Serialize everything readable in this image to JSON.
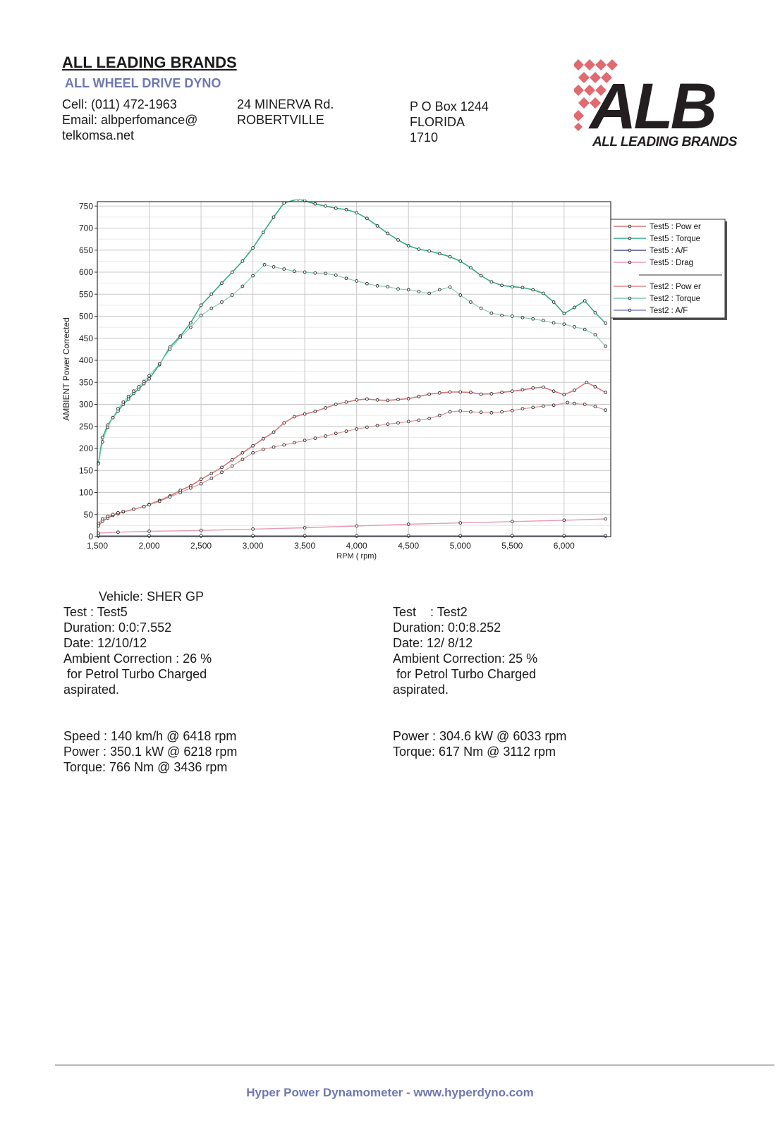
{
  "header": {
    "company": "ALL LEADING BRANDS",
    "subtitle": "ALL WHEEL DRIVE DYNO",
    "col1": [
      "Cell: (011) 472-1963",
      "Email: albperfomance@",
      "telkomsa.net"
    ],
    "col2": [
      "24 MINERVA Rd.",
      "ROBERTVILLE"
    ],
    "col3": [
      "P O Box 1244",
      "FLORIDA",
      "1710"
    ]
  },
  "logo": {
    "letters": "ALB",
    "tagline": "ALL LEADING BRANDS",
    "color_dark": "#231f20",
    "color_accent": "#e06a6f"
  },
  "chart_data": {
    "type": "line",
    "ylabel": "AMBIENT Power Corrected",
    "xlabel": "RPM ( rpm)",
    "xlim": [
      1500,
      6450
    ],
    "ylim": [
      0,
      760
    ],
    "xticks": [
      1500,
      2000,
      2500,
      3000,
      3500,
      4000,
      4500,
      5000,
      5500,
      6000
    ],
    "xtick_labels": [
      "1,500",
      "2,000",
      "2,500",
      "3,000",
      "3,500",
      "4,000",
      "4,500",
      "5,000",
      "5,500",
      "6,000"
    ],
    "yticks": [
      0,
      50,
      100,
      150,
      200,
      250,
      300,
      350,
      400,
      450,
      500,
      550,
      600,
      650,
      700,
      750
    ],
    "grid": true,
    "legend_position": "right",
    "series": [
      {
        "name": "Test5 : Pow er",
        "color": "#d9767b",
        "width": 1.6,
        "x": [
          1510,
          1550,
          1600,
          1650,
          1700,
          1750,
          1850,
          1950,
          2000,
          2100,
          2200,
          2300,
          2400,
          2500,
          2600,
          2700,
          2800,
          2900,
          3000,
          3100,
          3200,
          3300,
          3400,
          3500,
          3600,
          3700,
          3800,
          3900,
          4000,
          4100,
          4200,
          4300,
          4400,
          4500,
          4600,
          4700,
          4800,
          4900,
          5000,
          5100,
          5200,
          5300,
          5400,
          5500,
          5600,
          5700,
          5800,
          5900,
          6000,
          6100,
          6218,
          6300,
          6400
        ],
        "y": [
          24,
          35,
          42,
          48,
          52,
          56,
          62,
          68,
          73,
          82,
          92,
          105,
          115,
          130,
          143,
          157,
          174,
          190,
          206,
          222,
          237,
          258,
          272,
          278,
          284,
          292,
          300,
          305,
          310,
          312,
          310,
          309,
          311,
          313,
          318,
          323,
          326,
          328,
          328,
          327,
          323,
          324,
          327,
          330,
          333,
          337,
          339,
          330,
          322,
          332,
          350,
          340,
          327
        ]
      },
      {
        "name": "Test5 : Torque",
        "color": "#2fae84",
        "width": 1.6,
        "x": [
          1510,
          1550,
          1600,
          1650,
          1700,
          1750,
          1800,
          1850,
          1900,
          1950,
          2000,
          2100,
          2200,
          2300,
          2400,
          2500,
          2600,
          2700,
          2800,
          2900,
          3000,
          3100,
          3200,
          3300,
          3436,
          3500,
          3600,
          3700,
          3800,
          3900,
          4000,
          4100,
          4200,
          4300,
          4400,
          4500,
          4600,
          4700,
          4800,
          4900,
          5000,
          5100,
          5200,
          5300,
          5400,
          5500,
          5600,
          5700,
          5800,
          5900,
          6000,
          6100,
          6200,
          6300,
          6400
        ],
        "y": [
          167,
          225,
          253,
          270,
          285,
          300,
          312,
          325,
          335,
          347,
          358,
          390,
          430,
          455,
          485,
          525,
          550,
          575,
          600,
          625,
          655,
          690,
          725,
          757,
          766,
          762,
          755,
          750,
          745,
          742,
          735,
          722,
          705,
          688,
          673,
          660,
          652,
          648,
          642,
          635,
          625,
          610,
          592,
          578,
          570,
          567,
          565,
          560,
          552,
          532,
          506,
          520,
          535,
          508,
          484
        ]
      },
      {
        "name": "Test5 : A/F",
        "color": "#4a4f9a",
        "width": 1.4,
        "x": [
          1510,
          2000,
          2500,
          3000,
          3500,
          4000,
          4500,
          5000,
          5500,
          6000,
          6400
        ],
        "y": [
          1,
          1,
          1,
          1,
          1,
          1,
          1,
          1,
          1,
          1,
          1
        ]
      },
      {
        "name": "Test5 : Drag",
        "color": "#e89ab8",
        "width": 1.4,
        "x": [
          1510,
          1700,
          2000,
          2500,
          3000,
          3500,
          4000,
          4500,
          5000,
          5500,
          6000,
          6400
        ],
        "y": [
          8,
          10,
          12,
          14,
          17,
          20,
          24,
          28,
          31,
          34,
          37,
          40
        ]
      },
      {
        "name": "Test2 : Pow er",
        "color": "#e28a8e",
        "width": 1.1,
        "x": [
          1510,
          1550,
          1600,
          1650,
          1700,
          1750,
          1850,
          1950,
          2000,
          2100,
          2200,
          2300,
          2400,
          2500,
          2600,
          2700,
          2800,
          2900,
          3000,
          3100,
          3200,
          3300,
          3400,
          3500,
          3600,
          3700,
          3800,
          3900,
          4000,
          4100,
          4200,
          4300,
          4400,
          4500,
          4600,
          4700,
          4800,
          4900,
          5000,
          5100,
          5200,
          5300,
          5400,
          5500,
          5600,
          5700,
          5800,
          5900,
          6033,
          6100,
          6200,
          6300,
          6400
        ],
        "y": [
          30,
          40,
          46,
          50,
          54,
          57,
          62,
          68,
          72,
          80,
          90,
          100,
          110,
          120,
          132,
          146,
          160,
          175,
          190,
          198,
          203,
          208,
          213,
          218,
          223,
          228,
          234,
          239,
          244,
          248,
          252,
          255,
          258,
          261,
          264,
          268,
          275,
          283,
          285,
          283,
          282,
          281,
          283,
          286,
          290,
          293,
          296,
          298,
          304,
          302,
          300,
          295,
          287
        ]
      },
      {
        "name": "Test2 : Torque",
        "color": "#7dc9ad",
        "width": 1.1,
        "x": [
          1510,
          1550,
          1600,
          1650,
          1700,
          1750,
          1800,
          1850,
          1900,
          1950,
          2000,
          2100,
          2200,
          2300,
          2400,
          2500,
          2600,
          2700,
          2800,
          2900,
          3000,
          3112,
          3200,
          3300,
          3400,
          3500,
          3600,
          3700,
          3800,
          3900,
          4000,
          4100,
          4200,
          4300,
          4400,
          4500,
          4600,
          4700,
          4800,
          4900,
          5000,
          5100,
          5200,
          5300,
          5400,
          5500,
          5600,
          5700,
          5800,
          5900,
          6000,
          6100,
          6200,
          6300,
          6400
        ],
        "y": [
          165,
          215,
          248,
          270,
          290,
          305,
          318,
          330,
          340,
          352,
          365,
          392,
          425,
          452,
          475,
          502,
          518,
          532,
          548,
          568,
          592,
          617,
          612,
          607,
          602,
          600,
          598,
          597,
          593,
          586,
          580,
          574,
          569,
          567,
          562,
          560,
          556,
          552,
          560,
          566,
          548,
          532,
          518,
          507,
          502,
          500,
          497,
          494,
          490,
          485,
          482,
          476,
          470,
          458,
          432
        ]
      },
      {
        "name": "Test2 : A/F",
        "color": "#7f84c2",
        "width": 1.1,
        "x": [
          1510,
          2000,
          2500,
          3000,
          3500,
          4000,
          4500,
          5000,
          5500,
          6000,
          6400
        ],
        "y": [
          2,
          2,
          2,
          2,
          2,
          2,
          2,
          2,
          2,
          2,
          2
        ]
      }
    ]
  },
  "test5": {
    "vehicle": "Vehicle: SHER GP",
    "test": "Test    : Test5",
    "duration": "Duration: 0:0:7.552",
    "date": "Date: 12/10/12",
    "ambient": "Ambient Correction : 26 %",
    "fuel": " for Petrol Turbo Charged",
    "aspiration": "aspirated.",
    "speed": "Speed : 140 km/h @ 6418 rpm",
    "power": "Power : 350.1 kW @ 6218 rpm",
    "torque": "Torque: 766 Nm @ 3436 rpm"
  },
  "test2": {
    "test": "Test    : Test2",
    "duration": "Duration: 0:0:8.252",
    "date": "Date: 12/ 8/12",
    "ambient": "Ambient Correction: 25 %",
    "fuel": " for Petrol Turbo Charged",
    "aspiration": "aspirated.",
    "power": "Power : 304.6 kW @ 6033 rpm",
    "torque": "Torque: 617 Nm @ 3112 rpm"
  },
  "footer": "Hyper Power Dynamometer - www.hyperdyno.com"
}
